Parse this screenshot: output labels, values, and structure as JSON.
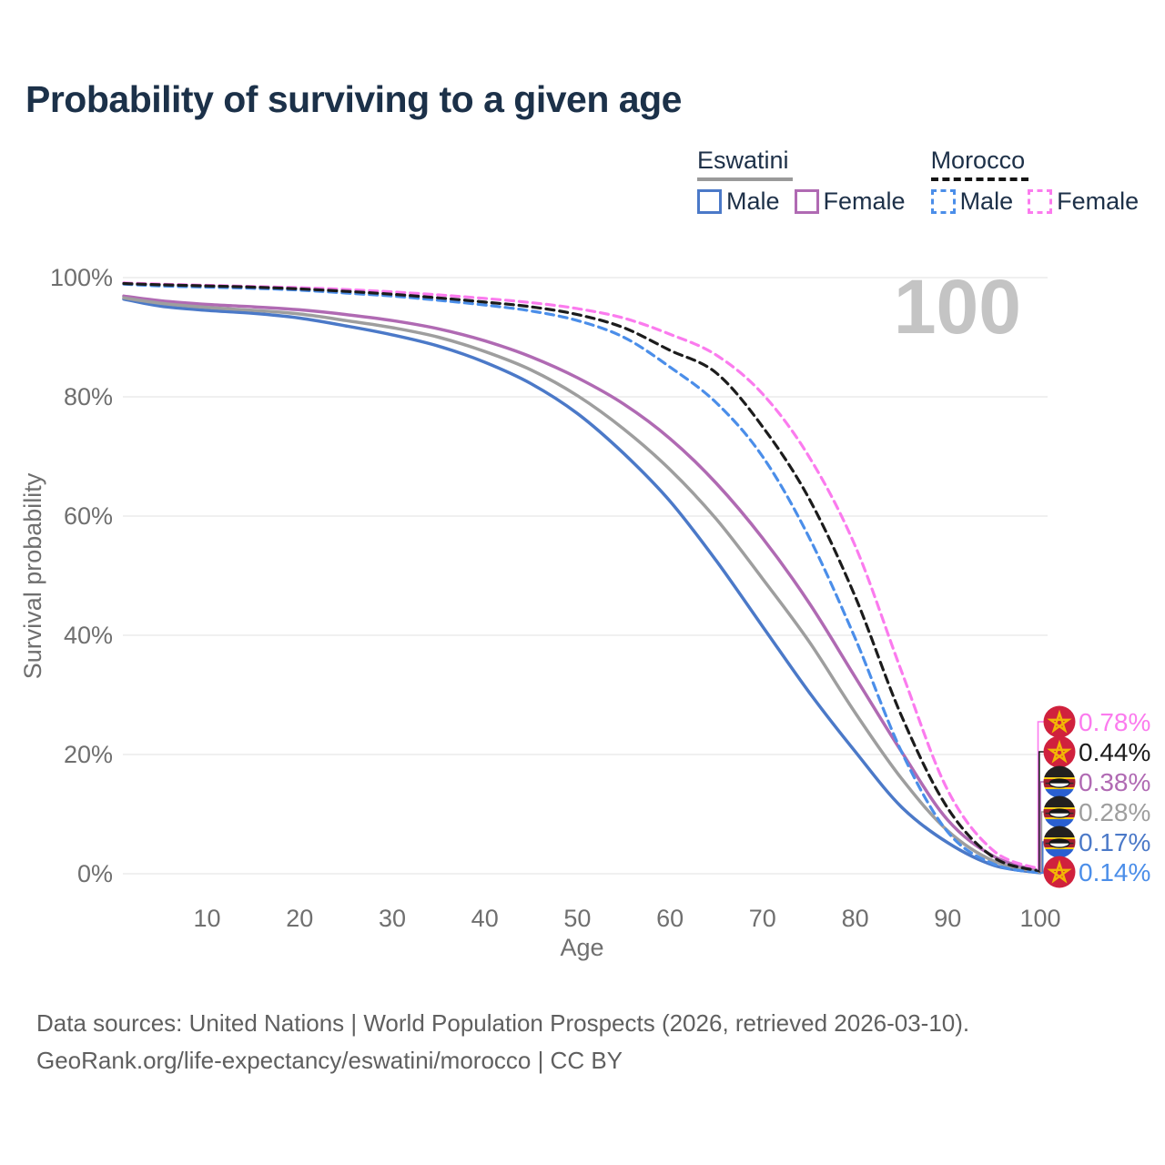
{
  "title": "Probability of surviving to a given age",
  "watermark": "100",
  "legend": {
    "groups": [
      {
        "label": "Eswatini",
        "line_style": "solid",
        "underline_color": "#9a9a9a",
        "items": [
          {
            "label": "Male",
            "color": "#4b79c8"
          },
          {
            "label": "Female",
            "color": "#b06ab3"
          }
        ]
      },
      {
        "label": "Morocco",
        "line_style": "dashed",
        "underline_color": "#151515",
        "items": [
          {
            "label": "Male",
            "color": "#4b8ee9"
          },
          {
            "label": "Female",
            "color": "#fb7bee"
          }
        ]
      }
    ]
  },
  "chart_data": {
    "type": "line",
    "title": "Probability of surviving to a given age",
    "xlabel": "Age",
    "ylabel": "Survival probability",
    "xlim": [
      1,
      100
    ],
    "ylim": [
      0,
      100
    ],
    "grid": "horizontal",
    "legend_position": "top-right",
    "xticks": [
      "10",
      "20",
      "30",
      "40",
      "50",
      "60",
      "70",
      "80",
      "90",
      "100"
    ],
    "yticks": [
      "0%",
      "20%",
      "40%",
      "60%",
      "80%",
      "100%"
    ],
    "x": [
      1,
      5,
      10,
      15,
      20,
      25,
      30,
      35,
      40,
      45,
      50,
      55,
      60,
      65,
      70,
      75,
      80,
      85,
      90,
      95,
      100
    ],
    "series": [
      {
        "name": "Eswatini Male",
        "country": "eswatini",
        "color": "#4b79c8",
        "dash": false,
        "end_label": "0.17%",
        "values": [
          96.4,
          95.2,
          94.5,
          94.0,
          93.2,
          91.9,
          90.4,
          88.5,
          85.8,
          82.2,
          77.2,
          70.5,
          62.5,
          52.5,
          41.5,
          30.5,
          20.5,
          11.2,
          5.2,
          1.4,
          0.17
        ]
      },
      {
        "name": "Eswatini Female",
        "country": "eswatini",
        "color": "#b06ab3",
        "dash": false,
        "end_label": "0.38%",
        "values": [
          96.9,
          96.1,
          95.5,
          95.1,
          94.6,
          93.8,
          92.8,
          91.4,
          89.4,
          86.7,
          83.2,
          78.8,
          73.0,
          65.5,
          56.3,
          45.5,
          33.0,
          20.5,
          9.0,
          2.9,
          0.38
        ]
      },
      {
        "name": "Eswatini Both sexes",
        "country": "eswatini",
        "color": "#9e9e9e",
        "dash": false,
        "end_label": "0.28%",
        "values": [
          96.6,
          95.7,
          95.0,
          94.5,
          93.9,
          92.8,
          91.6,
          90.0,
          87.6,
          84.5,
          80.2,
          74.6,
          67.8,
          59.5,
          49.5,
          39.0,
          27.0,
          16.0,
          7.2,
          2.1,
          0.28
        ]
      },
      {
        "name": "Morocco Male",
        "country": "morocco",
        "color": "#4b8ee9",
        "dash": true,
        "end_label": "0.14%",
        "values": [
          98.9,
          98.6,
          98.4,
          98.2,
          97.9,
          97.4,
          96.9,
          96.2,
          95.4,
          94.4,
          92.8,
          90.0,
          85.0,
          79.0,
          70.0,
          56.5,
          39.5,
          20.5,
          7.0,
          1.6,
          0.14
        ]
      },
      {
        "name": "Morocco Female",
        "country": "morocco",
        "color": "#fb7bee",
        "dash": true,
        "end_label": "0.78%",
        "values": [
          99.1,
          98.9,
          98.7,
          98.5,
          98.3,
          98.0,
          97.6,
          97.1,
          96.5,
          95.8,
          94.8,
          93.2,
          90.5,
          87.0,
          80.5,
          70.0,
          55.0,
          34.0,
          14.0,
          3.8,
          0.78
        ]
      },
      {
        "name": "Morocco Both sexes",
        "country": "morocco",
        "color": "#1c1c1c",
        "dash": true,
        "end_label": "0.44%",
        "values": [
          99.0,
          98.8,
          98.6,
          98.4,
          98.1,
          97.7,
          97.2,
          96.6,
          95.9,
          95.1,
          93.8,
          91.6,
          87.8,
          84.0,
          75.0,
          63.0,
          46.5,
          26.5,
          11.0,
          2.7,
          0.44
        ]
      }
    ]
  },
  "footer": {
    "line1": "Data sources: United Nations | World Population Prospects (2026, retrieved 2026-03-10).",
    "line2": "GeoRank.org/life-expectancy/eswatini/morocco | CC BY"
  }
}
